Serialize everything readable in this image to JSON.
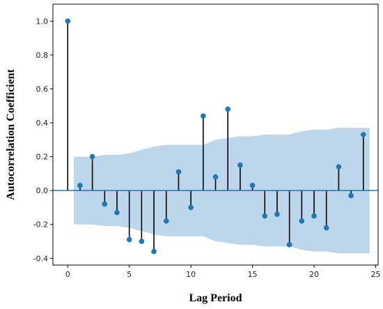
{
  "chart_data": {
    "type": "scatter",
    "subtype": "acf-stem",
    "title": "",
    "xlabel": "Lag Period",
    "ylabel": "Autocorrelation Coefficient",
    "xlim": [
      -1.2,
      25.2
    ],
    "ylim": [
      -0.44,
      1.1
    ],
    "xticks": [
      0,
      5,
      10,
      15,
      20,
      25
    ],
    "yticks": [
      -0.4,
      -0.2,
      0.0,
      0.2,
      0.4,
      0.6,
      0.8,
      1.0
    ],
    "ytick_labels": [
      "-0.4",
      "-0.2",
      "0.0",
      "0.2",
      "0.4",
      "0.6",
      "0.8",
      "1.0"
    ],
    "grid": false,
    "series": [
      {
        "lags": [
          0,
          1,
          2,
          3,
          4,
          5,
          6,
          7,
          8,
          9,
          10,
          11,
          12,
          13,
          14,
          15,
          16,
          17,
          18,
          19,
          20,
          21,
          22,
          23,
          24
        ],
        "values": [
          1.0,
          0.03,
          0.2,
          -0.08,
          -0.13,
          -0.29,
          -0.3,
          -0.36,
          -0.18,
          0.11,
          -0.1,
          0.44,
          0.08,
          0.48,
          0.15,
          0.03,
          -0.15,
          -0.14,
          -0.32,
          -0.18,
          -0.15,
          -0.22,
          0.14,
          -0.03,
          0.33
        ]
      }
    ],
    "confidence_band": {
      "x": [
        0.5,
        1,
        2,
        3,
        4,
        5,
        6,
        7,
        8,
        9,
        10,
        11,
        12,
        13,
        14,
        15,
        16,
        17,
        18,
        19,
        20,
        21,
        22,
        23,
        24.5
      ],
      "upper": [
        0.2,
        0.2,
        0.2,
        0.21,
        0.21,
        0.22,
        0.24,
        0.26,
        0.27,
        0.27,
        0.27,
        0.27,
        0.3,
        0.31,
        0.32,
        0.32,
        0.33,
        0.33,
        0.33,
        0.35,
        0.36,
        0.36,
        0.37,
        0.37,
        0.37
      ],
      "lower": [
        -0.2,
        -0.2,
        -0.2,
        -0.21,
        -0.21,
        -0.22,
        -0.24,
        -0.26,
        -0.27,
        -0.27,
        -0.27,
        -0.27,
        -0.3,
        -0.31,
        -0.32,
        -0.32,
        -0.33,
        -0.33,
        -0.33,
        -0.35,
        -0.36,
        -0.36,
        -0.37,
        -0.37,
        -0.37
      ]
    },
    "colors": {
      "marker": "#1f77b4",
      "stem": "#000000",
      "baseline": "#1f77b4",
      "band": "#a8c8e4"
    }
  }
}
